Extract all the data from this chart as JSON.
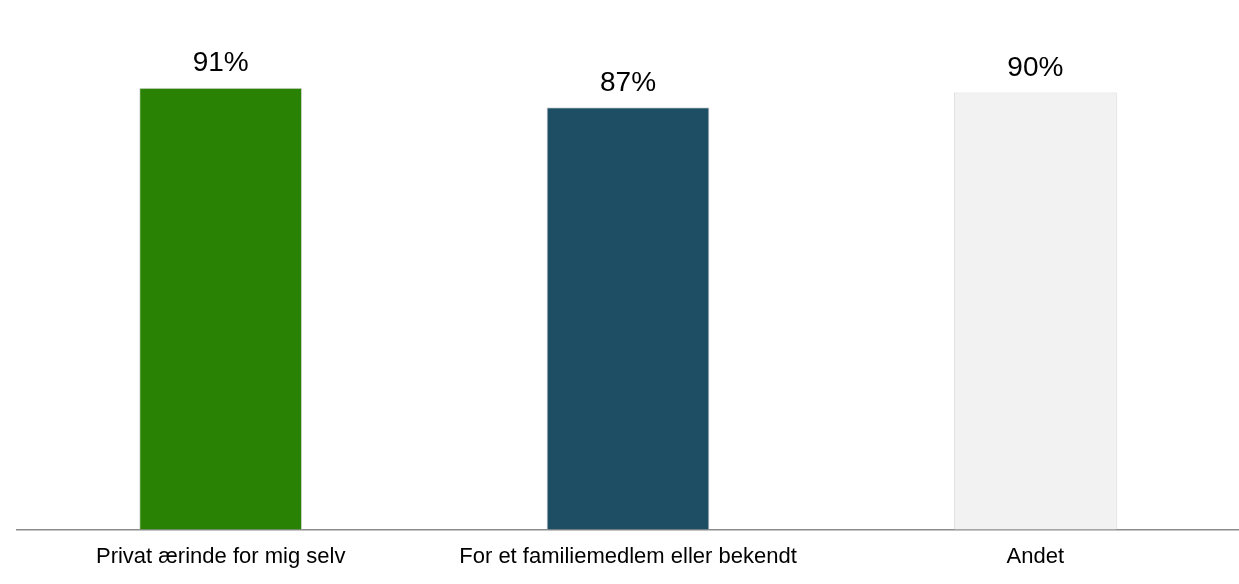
{
  "chart_data": {
    "type": "bar",
    "categories": [
      "Privat ærinde for mig selv",
      "For et familiemedlem eller bekendt",
      "Andet"
    ],
    "values": [
      91,
      87,
      90
    ],
    "colors": [
      "#2a8204",
      "#1d4e63",
      "#f2f2f2"
    ],
    "value_labels": [
      "91%",
      "87%",
      "90%"
    ],
    "grid": false,
    "legend": false
  }
}
